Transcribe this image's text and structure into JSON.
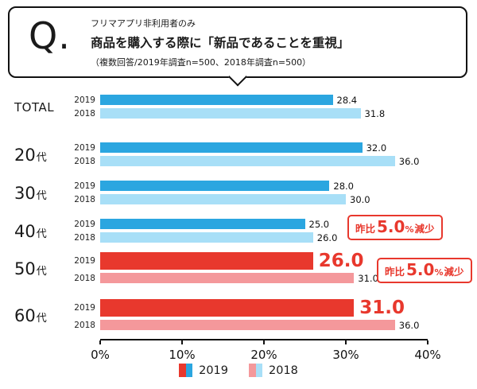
{
  "header": {
    "q_mark": "Q.",
    "eyebrow": "フリマアプリ非利用者のみ",
    "title": "商品を購入する際に「新品であることを重視」",
    "note": "（複数回答/2019年調査n=500、2018年調査n=500）"
  },
  "chart_data": {
    "type": "bar",
    "orientation": "horizontal",
    "title": "商品を購入する際に「新品であることを重視」",
    "categories": [
      "TOTAL",
      "20代",
      "30代",
      "40代",
      "50代",
      "60代"
    ],
    "series": [
      {
        "name": "2019",
        "values": [
          28.4,
          32.0,
          28.0,
          25.0,
          26.0,
          31.0
        ]
      },
      {
        "name": "2018",
        "values": [
          31.8,
          36.0,
          30.0,
          26.0,
          31.0,
          36.0
        ]
      }
    ],
    "highlight_categories": [
      "50代",
      "60代"
    ],
    "xlim": [
      0,
      40
    ],
    "x_ticks": [
      "0%",
      "10%",
      "20%",
      "30%",
      "40%"
    ],
    "grid": false,
    "legend_position": "bottom",
    "annotations": [
      {
        "prefix": "昨比",
        "value": "5.0",
        "unit": "%",
        "suffix": "減少",
        "target": "50代"
      },
      {
        "prefix": "昨比",
        "value": "5.0",
        "unit": "%",
        "suffix": "減少",
        "target": "60代"
      }
    ],
    "colors": {
      "blue_2019": "#2BA6E0",
      "lightblue_2018": "#A8DFF7",
      "red_2019": "#E8382D",
      "pink_2018": "#F4989B",
      "highlight_text": "#E8382D",
      "axis": "#111111"
    },
    "legend": [
      {
        "label": "2019",
        "colors": [
          "#E8382D",
          "#2BA6E0"
        ]
      },
      {
        "label": "2018",
        "colors": [
          "#F4989B",
          "#A8DFF7"
        ]
      }
    ]
  }
}
